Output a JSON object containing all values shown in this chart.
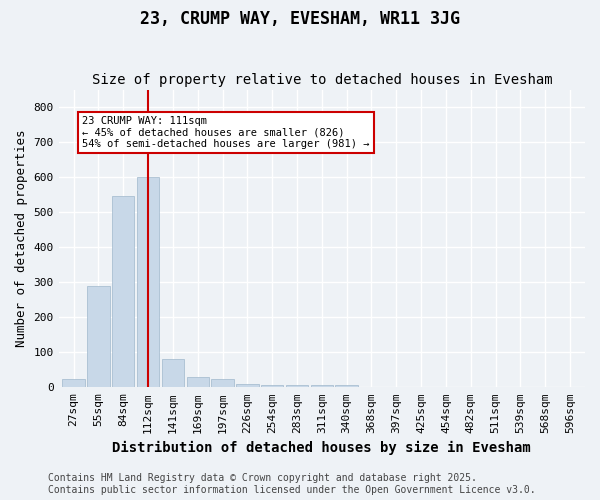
{
  "title": "23, CRUMP WAY, EVESHAM, WR11 3JG",
  "subtitle": "Size of property relative to detached houses in Evesham",
  "xlabel": "Distribution of detached houses by size in Evesham",
  "ylabel": "Number of detached properties",
  "categories": [
    "27sqm",
    "55sqm",
    "84sqm",
    "112sqm",
    "141sqm",
    "169sqm",
    "197sqm",
    "226sqm",
    "254sqm",
    "283sqm",
    "311sqm",
    "340sqm",
    "368sqm",
    "397sqm",
    "425sqm",
    "454sqm",
    "482sqm",
    "511sqm",
    "539sqm",
    "568sqm",
    "596sqm"
  ],
  "values": [
    22,
    290,
    545,
    600,
    80,
    30,
    22,
    10,
    7,
    5,
    7,
    5,
    0,
    0,
    0,
    0,
    0,
    0,
    0,
    0,
    0
  ],
  "bar_color": "#c8d8e8",
  "bar_edgecolor": "#a0b8cc",
  "highlight_index": 3,
  "highlight_line_color": "#cc0000",
  "ylim": [
    0,
    850
  ],
  "yticks": [
    0,
    100,
    200,
    300,
    400,
    500,
    600,
    700,
    800
  ],
  "annotation_text": "23 CRUMP WAY: 111sqm\n← 45% of detached houses are smaller (826)\n54% of semi-detached houses are larger (981) →",
  "annotation_box_color": "#ffffff",
  "annotation_box_edgecolor": "#cc0000",
  "footer_line1": "Contains HM Land Registry data © Crown copyright and database right 2025.",
  "footer_line2": "Contains public sector information licensed under the Open Government Licence v3.0.",
  "background_color": "#eef2f6",
  "grid_color": "#ffffff",
  "title_fontsize": 12,
  "subtitle_fontsize": 10,
  "axis_fontsize": 9,
  "tick_fontsize": 8,
  "footer_fontsize": 7
}
